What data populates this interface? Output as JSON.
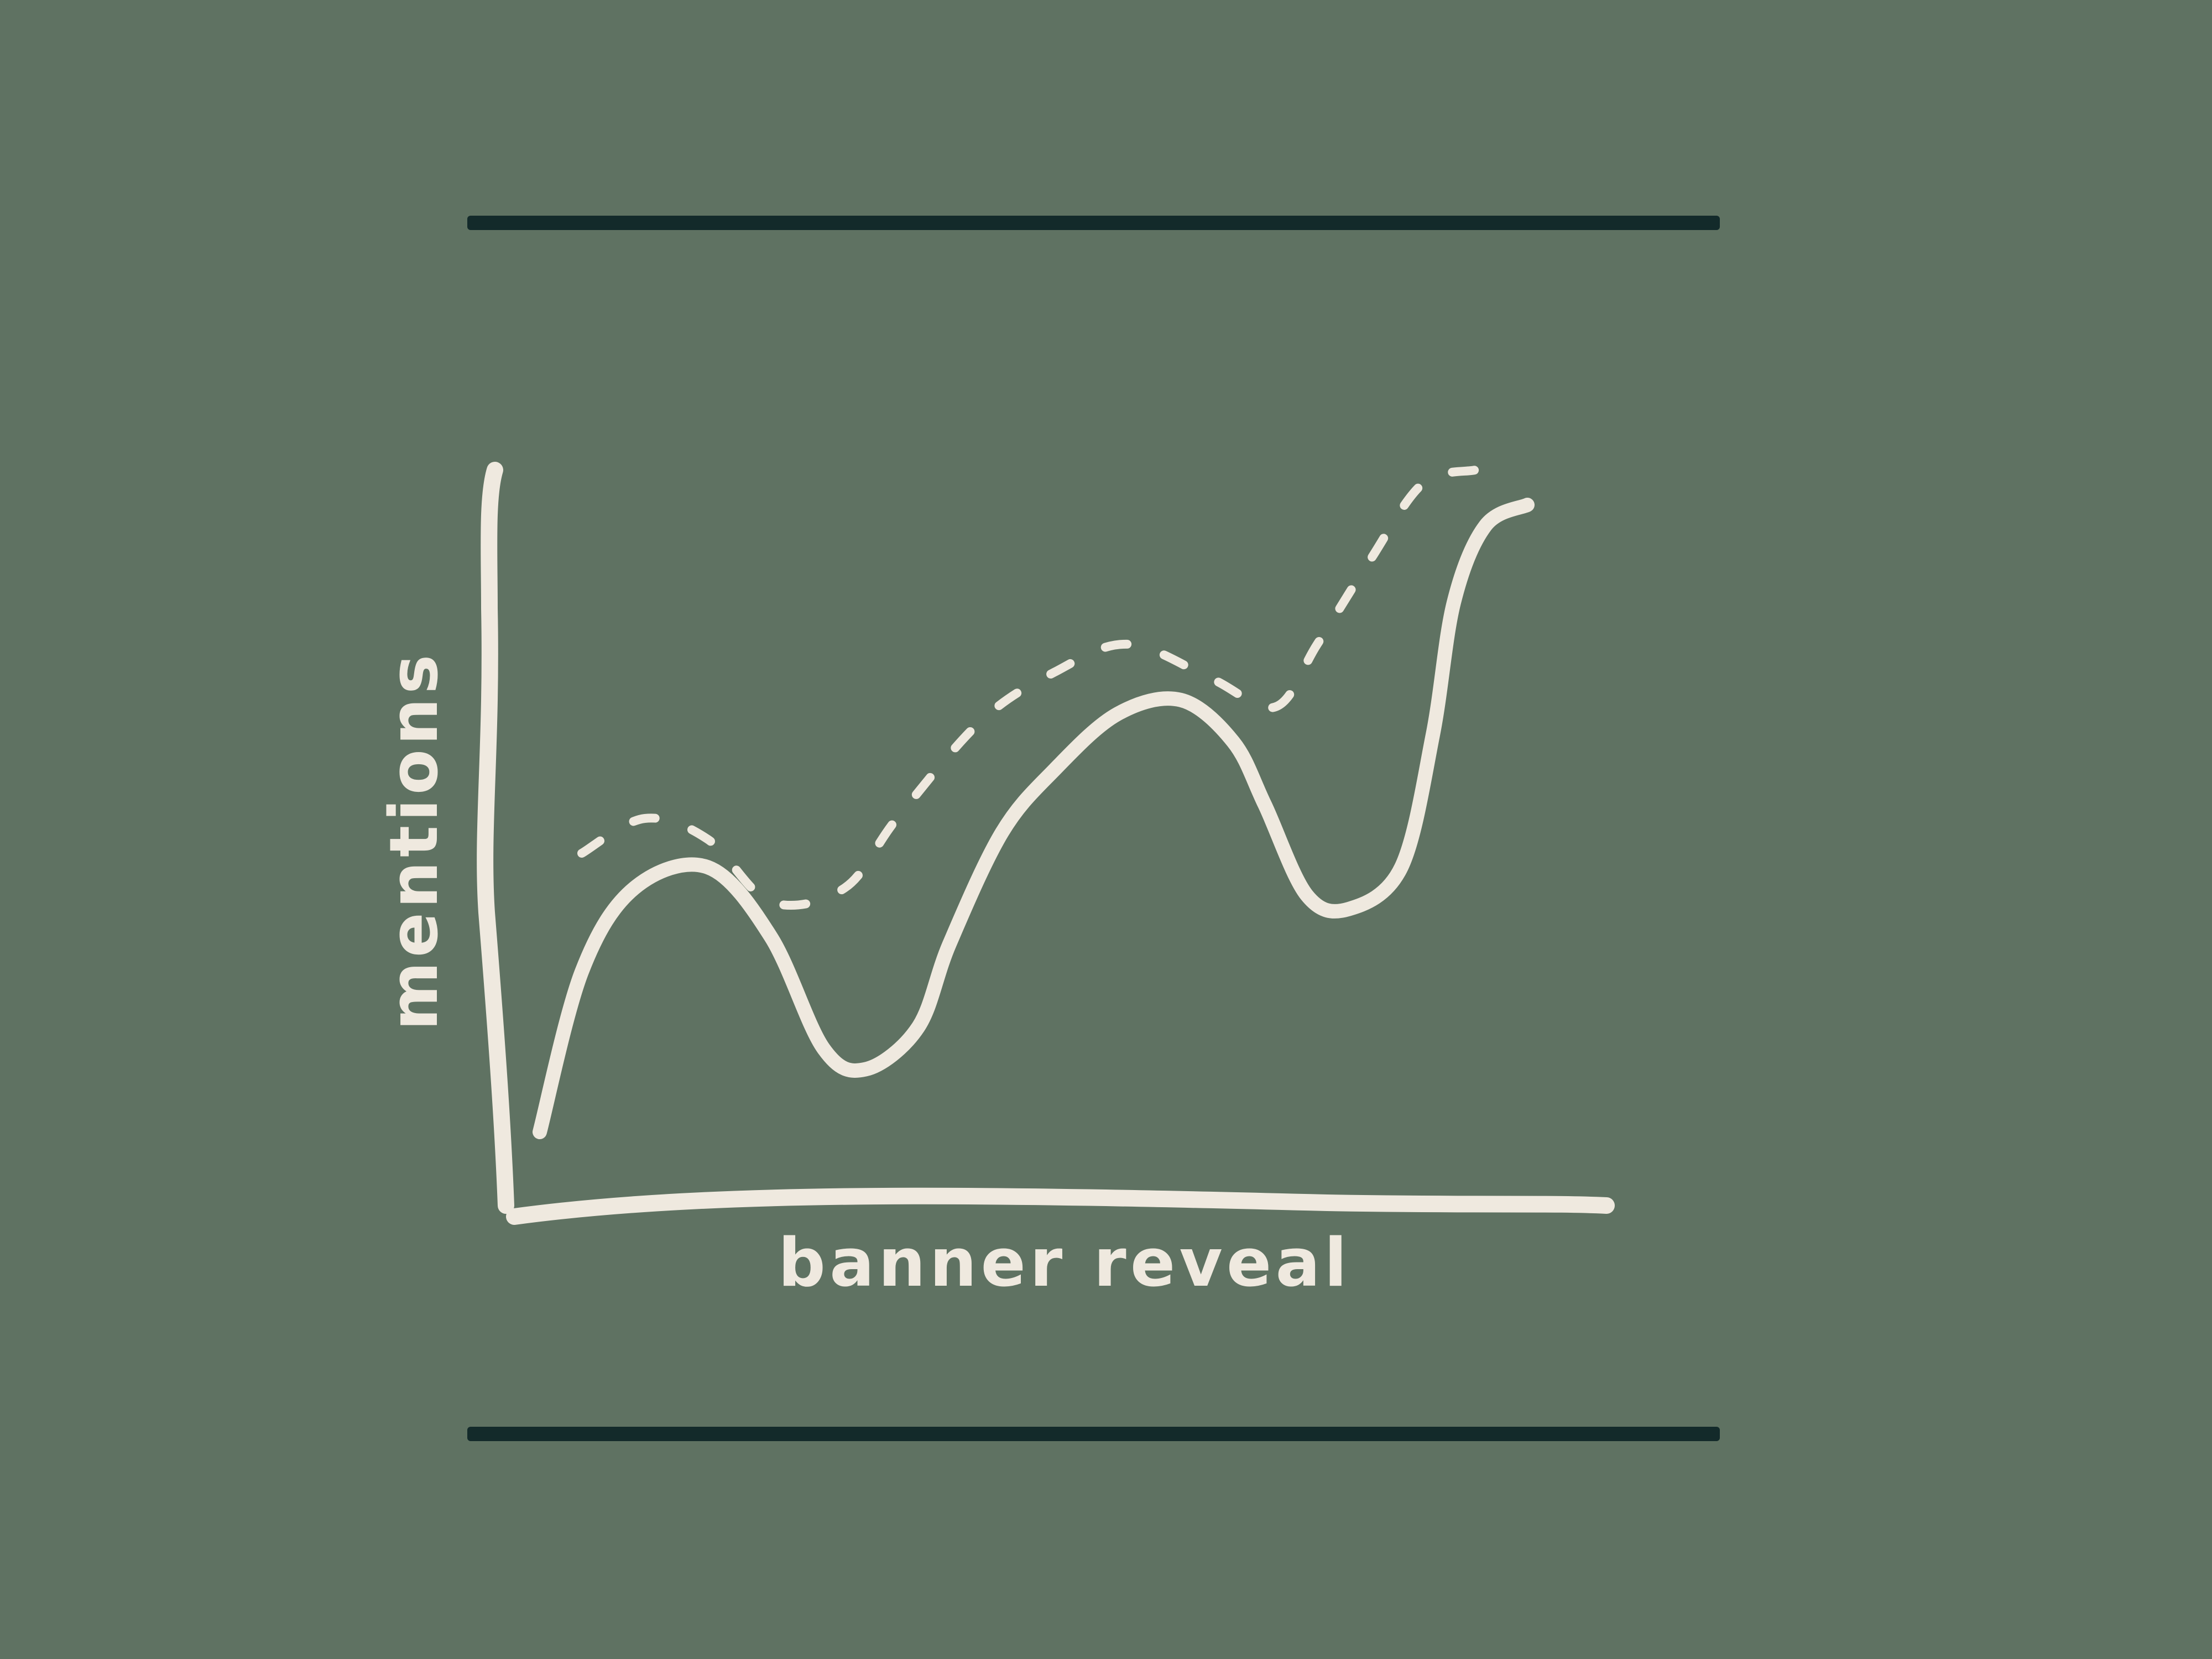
{
  "colors": {
    "background": "#5f7262",
    "ink": "#efe9df",
    "rule": "#132a2a"
  },
  "chart_data": {
    "type": "line",
    "title": "",
    "xlabel": "banner reveal",
    "ylabel": "mentions",
    "grid": false,
    "legend": "none",
    "xlim": [
      0,
      1
    ],
    "ylim": [
      0,
      1
    ],
    "series": [
      {
        "style": "solid",
        "points": [
          [
            0.04,
            0.05
          ],
          [
            0.08,
            0.28
          ],
          [
            0.13,
            0.4
          ],
          [
            0.2,
            0.43
          ],
          [
            0.26,
            0.33
          ],
          [
            0.31,
            0.17
          ],
          [
            0.35,
            0.14
          ],
          [
            0.4,
            0.2
          ],
          [
            0.43,
            0.32
          ],
          [
            0.48,
            0.48
          ],
          [
            0.53,
            0.57
          ],
          [
            0.59,
            0.65
          ],
          [
            0.65,
            0.67
          ],
          [
            0.7,
            0.61
          ],
          [
            0.73,
            0.52
          ],
          [
            0.77,
            0.39
          ],
          [
            0.81,
            0.37
          ],
          [
            0.86,
            0.43
          ],
          [
            0.89,
            0.62
          ],
          [
            0.91,
            0.81
          ],
          [
            0.94,
            0.92
          ],
          [
            0.98,
            0.95
          ]
        ]
      },
      {
        "style": "dashed",
        "points": [
          [
            0.08,
            0.45
          ],
          [
            0.14,
            0.5
          ],
          [
            0.2,
            0.47
          ],
          [
            0.26,
            0.38
          ],
          [
            0.33,
            0.4
          ],
          [
            0.38,
            0.5
          ],
          [
            0.46,
            0.64
          ],
          [
            0.53,
            0.71
          ],
          [
            0.6,
            0.75
          ],
          [
            0.68,
            0.7
          ],
          [
            0.74,
            0.66
          ],
          [
            0.78,
            0.75
          ],
          [
            0.83,
            0.87
          ],
          [
            0.88,
            0.98
          ],
          [
            0.93,
            1.0
          ]
        ]
      }
    ]
  }
}
